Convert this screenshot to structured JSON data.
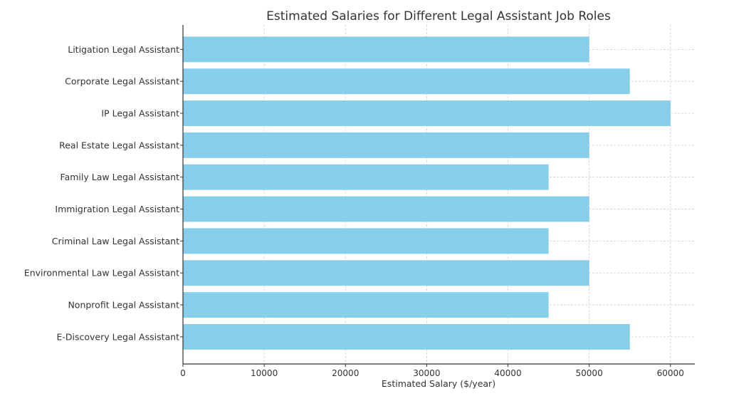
{
  "chart_data": {
    "type": "bar",
    "orientation": "horizontal",
    "title": "Estimated Salaries for Different Legal Assistant Job Roles",
    "xlabel": "Estimated Salary ($/year)",
    "ylabel": "",
    "categories": [
      "Litigation Legal Assistant",
      "Corporate Legal Assistant",
      "IP Legal Assistant",
      "Real Estate Legal Assistant",
      "Family Law Legal Assistant",
      "Immigration Legal Assistant",
      "Criminal Law Legal Assistant",
      "Environmental Law Legal Assistant",
      "Nonprofit Legal Assistant",
      "E-Discovery Legal Assistant"
    ],
    "values": [
      50000,
      55000,
      60000,
      50000,
      45000,
      50000,
      45000,
      50000,
      45000,
      55000
    ],
    "xlim": [
      0,
      63000
    ],
    "xticks": [
      0,
      10000,
      20000,
      30000,
      40000,
      50000,
      60000
    ],
    "xtick_labels": [
      "0",
      "10000",
      "20000",
      "30000",
      "40000",
      "50000",
      "60000"
    ],
    "grid": true,
    "bar_color": "#87ceeb"
  }
}
